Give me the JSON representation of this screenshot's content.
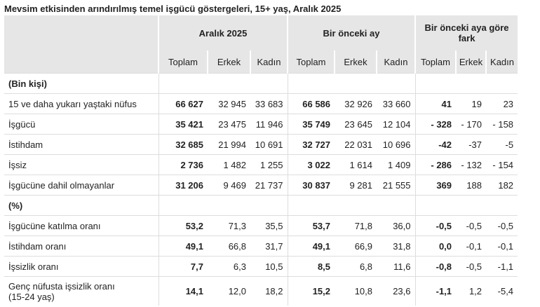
{
  "title": "Mevsim etkisinden arındırılmış temel işgücü göstergeleri, 15+ yaş, Aralık 2025",
  "table": {
    "groups": [
      "Aralık 2025",
      "Bir önceki ay",
      "Bir önceki aya göre fark"
    ],
    "subheaders": [
      "Toplam",
      "Erkek",
      "Kadın",
      "Toplam",
      "Erkek",
      "Kadın",
      "Toplam",
      "Erkek",
      "Kadın"
    ],
    "rows": [
      {
        "label": "(Bin kişi)"
      },
      {
        "label": "15 ve daha yukarı yaştaki nüfus",
        "cells": [
          "66 627",
          "32 945",
          "33 683",
          "66 586",
          "32 926",
          "33 660",
          "41",
          "19",
          "23"
        ]
      },
      {
        "label": "İşgücü",
        "cells": [
          "35 421",
          "23 475",
          "11 946",
          "35 749",
          "23 645",
          "12 104",
          "- 328",
          "- 170",
          "- 158"
        ]
      },
      {
        "label": "İstihdam",
        "cells": [
          "32 685",
          "21 994",
          "10 691",
          "32 727",
          "22 031",
          "10 696",
          "-42",
          "-37",
          "-5"
        ]
      },
      {
        "label": "İşsiz",
        "cells": [
          "2 736",
          "1 482",
          "1 255",
          "3 022",
          "1 614",
          "1 409",
          "- 286",
          "- 132",
          "- 154"
        ]
      },
      {
        "label": "İşgücüne dahil olmayanlar",
        "cells": [
          "31 206",
          "9 469",
          "21 737",
          "30 837",
          "9 281",
          "21 555",
          "369",
          "188",
          "182"
        ]
      },
      {
        "label": "(%)"
      },
      {
        "label": "İşgücüne katılma oranı",
        "cells": [
          "53,2",
          "71,3",
          "35,5",
          "53,7",
          "71,8",
          "36,0",
          "-0,5",
          "-0,5",
          "-0,5"
        ]
      },
      {
        "label": "İstihdam oranı",
        "cells": [
          "49,1",
          "66,8",
          "31,7",
          "49,1",
          "66,9",
          "31,8",
          "0,0",
          "-0,1",
          "-0,1"
        ]
      },
      {
        "label": "İşsizlik oranı",
        "cells": [
          "7,7",
          "6,3",
          "10,5",
          "8,5",
          "6,8",
          "11,6",
          "-0,8",
          "-0,5",
          "-1,1"
        ]
      },
      {
        "label": "Genç nüfusta işsizlik oranı\n(15-24 yaş)",
        "cells": [
          "14,1",
          "12,0",
          "18,2",
          "15,2",
          "10,8",
          "23,6",
          "-1,1",
          "1,2",
          "-5,4"
        ]
      }
    ]
  }
}
